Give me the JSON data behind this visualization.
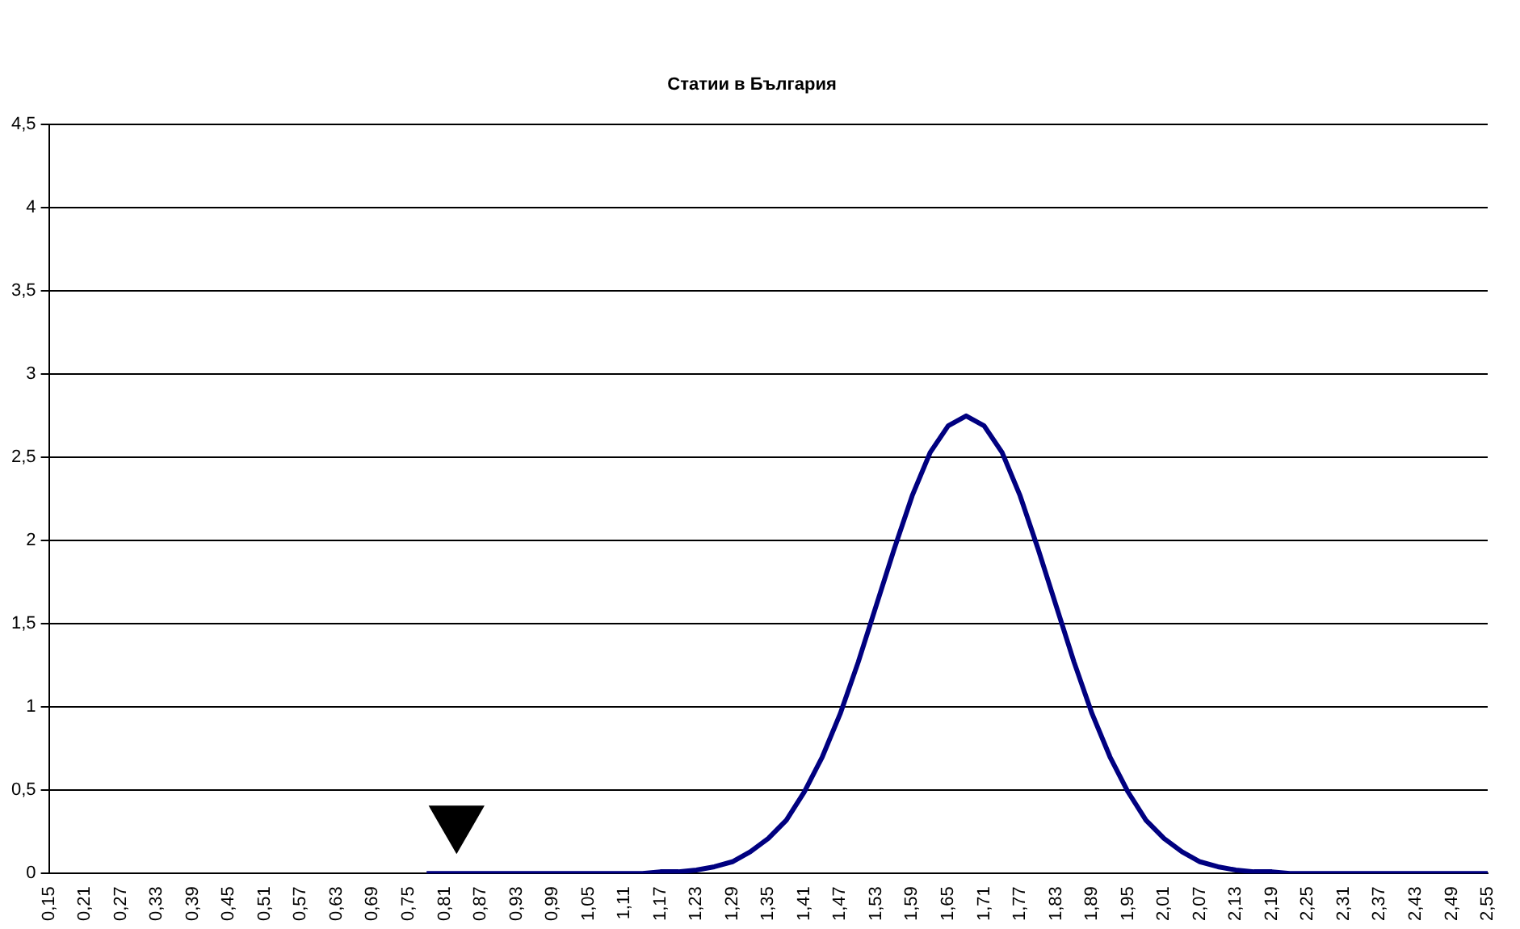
{
  "chart_data": {
    "type": "line",
    "title": "Статии в България",
    "xlim": [
      0.15,
      2.55
    ],
    "xticks": [
      {
        "value": 0.15,
        "label": "0,15"
      },
      {
        "value": 0.21,
        "label": "0,21"
      },
      {
        "value": 0.27,
        "label": "0,27"
      },
      {
        "value": 0.33,
        "label": "0,33"
      },
      {
        "value": 0.39,
        "label": "0,39"
      },
      {
        "value": 0.45,
        "label": "0,45"
      },
      {
        "value": 0.51,
        "label": "0,51"
      },
      {
        "value": 0.57,
        "label": "0,57"
      },
      {
        "value": 0.63,
        "label": "0,63"
      },
      {
        "value": 0.69,
        "label": "0,69"
      },
      {
        "value": 0.75,
        "label": "0,75"
      },
      {
        "value": 0.81,
        "label": "0,81"
      },
      {
        "value": 0.87,
        "label": "0,87"
      },
      {
        "value": 0.93,
        "label": "0,93"
      },
      {
        "value": 0.99,
        "label": "0,99"
      },
      {
        "value": 1.05,
        "label": "1,05"
      },
      {
        "value": 1.11,
        "label": "1,11"
      },
      {
        "value": 1.17,
        "label": "1,17"
      },
      {
        "value": 1.23,
        "label": "1,23"
      },
      {
        "value": 1.29,
        "label": "1,29"
      },
      {
        "value": 1.35,
        "label": "1,35"
      },
      {
        "value": 1.41,
        "label": "1,41"
      },
      {
        "value": 1.47,
        "label": "1,47"
      },
      {
        "value": 1.53,
        "label": "1,53"
      },
      {
        "value": 1.59,
        "label": "1,59"
      },
      {
        "value": 1.65,
        "label": "1,65"
      },
      {
        "value": 1.71,
        "label": "1,71"
      },
      {
        "value": 1.77,
        "label": "1,77"
      },
      {
        "value": 1.83,
        "label": "1,83"
      },
      {
        "value": 1.89,
        "label": "1,89"
      },
      {
        "value": 1.95,
        "label": "1,95"
      },
      {
        "value": 2.01,
        "label": "2,01"
      },
      {
        "value": 2.07,
        "label": "2,07"
      },
      {
        "value": 2.13,
        "label": "2,13"
      },
      {
        "value": 2.19,
        "label": "2,19"
      },
      {
        "value": 2.25,
        "label": "2,25"
      },
      {
        "value": 2.31,
        "label": "2,31"
      },
      {
        "value": 2.37,
        "label": "2,37"
      },
      {
        "value": 2.43,
        "label": "2,43"
      },
      {
        "value": 2.49,
        "label": "2,49"
      },
      {
        "value": 2.55,
        "label": "2,55"
      }
    ],
    "ylim": [
      0,
      4.5
    ],
    "yticks": [
      0,
      {
        "value": 0.5,
        "label": "0,5"
      },
      1,
      {
        "value": 1.5,
        "label": "1,5"
      },
      2,
      {
        "value": 2.5,
        "label": "2,5"
      },
      3,
      {
        "value": 3.5,
        "label": "3,5"
      },
      4,
      {
        "value": 4.5,
        "label": "4,5"
      }
    ],
    "grid": "y",
    "legend": false,
    "marker": "none",
    "line_style": "solid",
    "series": [
      {
        "color": "#000080",
        "x": [
          0.78,
          0.81,
          0.84,
          0.87,
          0.9,
          0.93,
          0.96,
          0.99,
          1.02,
          1.05,
          1.08,
          1.11,
          1.14,
          1.17,
          1.2,
          1.23,
          1.26,
          1.29,
          1.32,
          1.35,
          1.38,
          1.41,
          1.44,
          1.47,
          1.5,
          1.53,
          1.56,
          1.59,
          1.62,
          1.65,
          1.68,
          1.71,
          1.74,
          1.77,
          1.8,
          1.83,
          1.86,
          1.89,
          1.92,
          1.95,
          1.98,
          2.01,
          2.04,
          2.07,
          2.1,
          2.13,
          2.16,
          2.19,
          2.22,
          2.25,
          2.28,
          2.31,
          2.34,
          2.37,
          2.4,
          2.43,
          2.46,
          2.49,
          2.52,
          2.55
        ],
        "values": [
          0,
          0,
          0,
          0,
          0,
          0,
          0,
          0,
          0,
          0,
          0,
          0,
          0,
          0.01,
          0.01,
          0.02,
          0.04,
          0.07,
          0.13,
          0.21,
          0.32,
          0.49,
          0.7,
          0.96,
          1.27,
          1.61,
          1.95,
          2.27,
          2.53,
          2.69,
          2.75,
          2.69,
          2.53,
          2.27,
          1.95,
          1.61,
          1.27,
          0.96,
          0.7,
          0.49,
          0.32,
          0.21,
          0.13,
          0.07,
          0.04,
          0.02,
          0.01,
          0.01,
          0,
          0,
          0,
          0,
          0,
          0,
          0,
          0,
          0,
          0,
          0,
          0
        ]
      },
      {
        "type": "scatter",
        "color": "#000000",
        "marker": "triangle",
        "x": [
          0.83
        ],
        "values": [
          0.31
        ]
      }
    ]
  }
}
